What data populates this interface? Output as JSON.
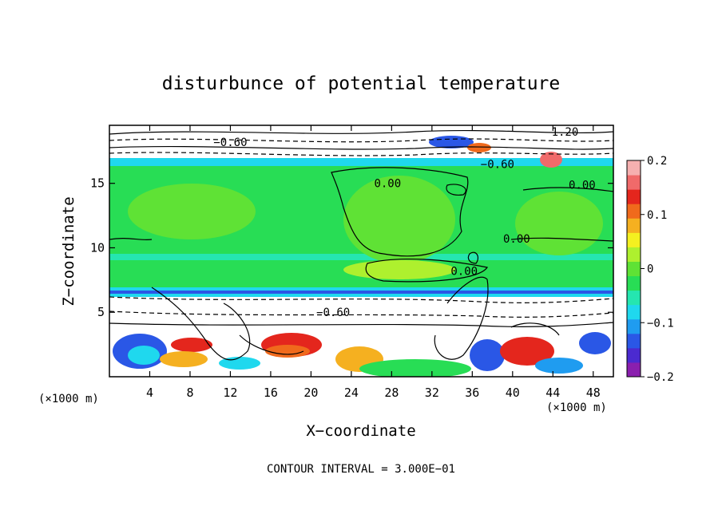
{
  "chart_data": {
    "type": "heatmap",
    "title": "disturbunce of potential temperature",
    "xlabel": "X−coordinate",
    "ylabel": "Z−coordinate",
    "x_unit": "(×1000 m)",
    "y_unit": "(×1000 m)",
    "footer": "CONTOUR INTERVAL = 3.000E−01",
    "xlim": [
      0,
      50
    ],
    "ylim": [
      0,
      19.5
    ],
    "x_ticks": [
      4,
      8,
      12,
      16,
      20,
      24,
      28,
      32,
      36,
      40,
      44,
      48
    ],
    "y_ticks": [
      5,
      10,
      15
    ],
    "grid": false,
    "colorbar": {
      "vmin": -0.2,
      "vmax": 0.2,
      "ticks": [
        0.2,
        0.1,
        0,
        -0.1,
        -0.2
      ],
      "tick_labels": [
        "0.2",
        "0.1",
        "0",
        "−0.1",
        "−0.2"
      ],
      "colors": [
        "#8a1fae",
        "#4b2ad0",
        "#2a57e6",
        "#1f9cf0",
        "#1fd8ee",
        "#25e6b0",
        "#28dd55",
        "#5fe235",
        "#aef02e",
        "#f4f020",
        "#f5b020",
        "#f06a1c",
        "#e4261d",
        "#f06a6a",
        "#f6b0b0"
      ]
    },
    "contour_labels": [
      {
        "text": "0.00",
        "x": 27.6,
        "y": 15.0
      },
      {
        "text": "0.00",
        "x": 46.9,
        "y": 14.9
      },
      {
        "text": "0.00",
        "x": 40.4,
        "y": 10.7
      },
      {
        "text": "0.00",
        "x": 35.2,
        "y": 8.2
      },
      {
        "text": "−0.60",
        "x": 22.2,
        "y": 5.0
      },
      {
        "text": "−0.60",
        "x": 12.0,
        "y": 18.2
      },
      {
        "text": "−0.60",
        "x": 38.5,
        "y": 16.5
      },
      {
        "text": "1.20",
        "x": 45.2,
        "y": 19.0
      }
    ]
  }
}
